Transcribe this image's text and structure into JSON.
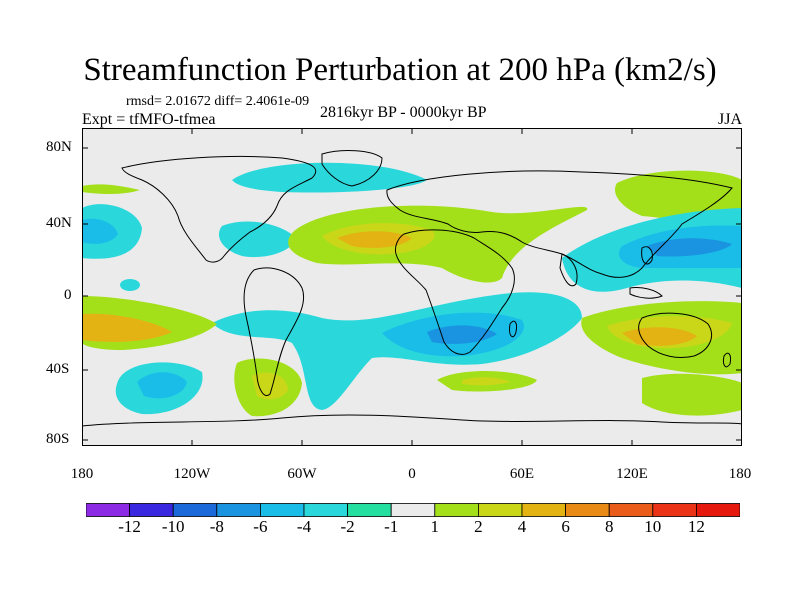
{
  "title": "Streamfunction Perturbation at 200 hPa (km2/s)",
  "stats_text": "rmsd= 2.01672 diff= 2.4061e-09",
  "experiment_label": "Expt = tfMFO-tfmea",
  "period_label": "2816kyr BP - 0000kyr BP",
  "season_label": "JJA",
  "axes": {
    "y_ticks": [
      "80N",
      "40N",
      "0",
      "40S",
      "80S"
    ],
    "x_ticks": [
      "180",
      "120W",
      "60W",
      "0",
      "60E",
      "120E",
      "180"
    ]
  },
  "colorbar": {
    "labels": [
      "-12",
      "-10",
      "-8",
      "-6",
      "-4",
      "-2",
      "-1",
      "1",
      "2",
      "4",
      "6",
      "8",
      "10",
      "12"
    ],
    "colors": [
      "#8c2be3",
      "#3a27e0",
      "#1c6ad9",
      "#1a93e0",
      "#19bde8",
      "#2ad8dc",
      "#24dfa0",
      "#ebebeb",
      "#a3e01a",
      "#c9d718",
      "#e3b314",
      "#ea8a16",
      "#ea5c19",
      "#ea3317",
      "#e6190f"
    ]
  },
  "colors": {
    "background": "#ebebeb",
    "coast": "#000000"
  }
}
